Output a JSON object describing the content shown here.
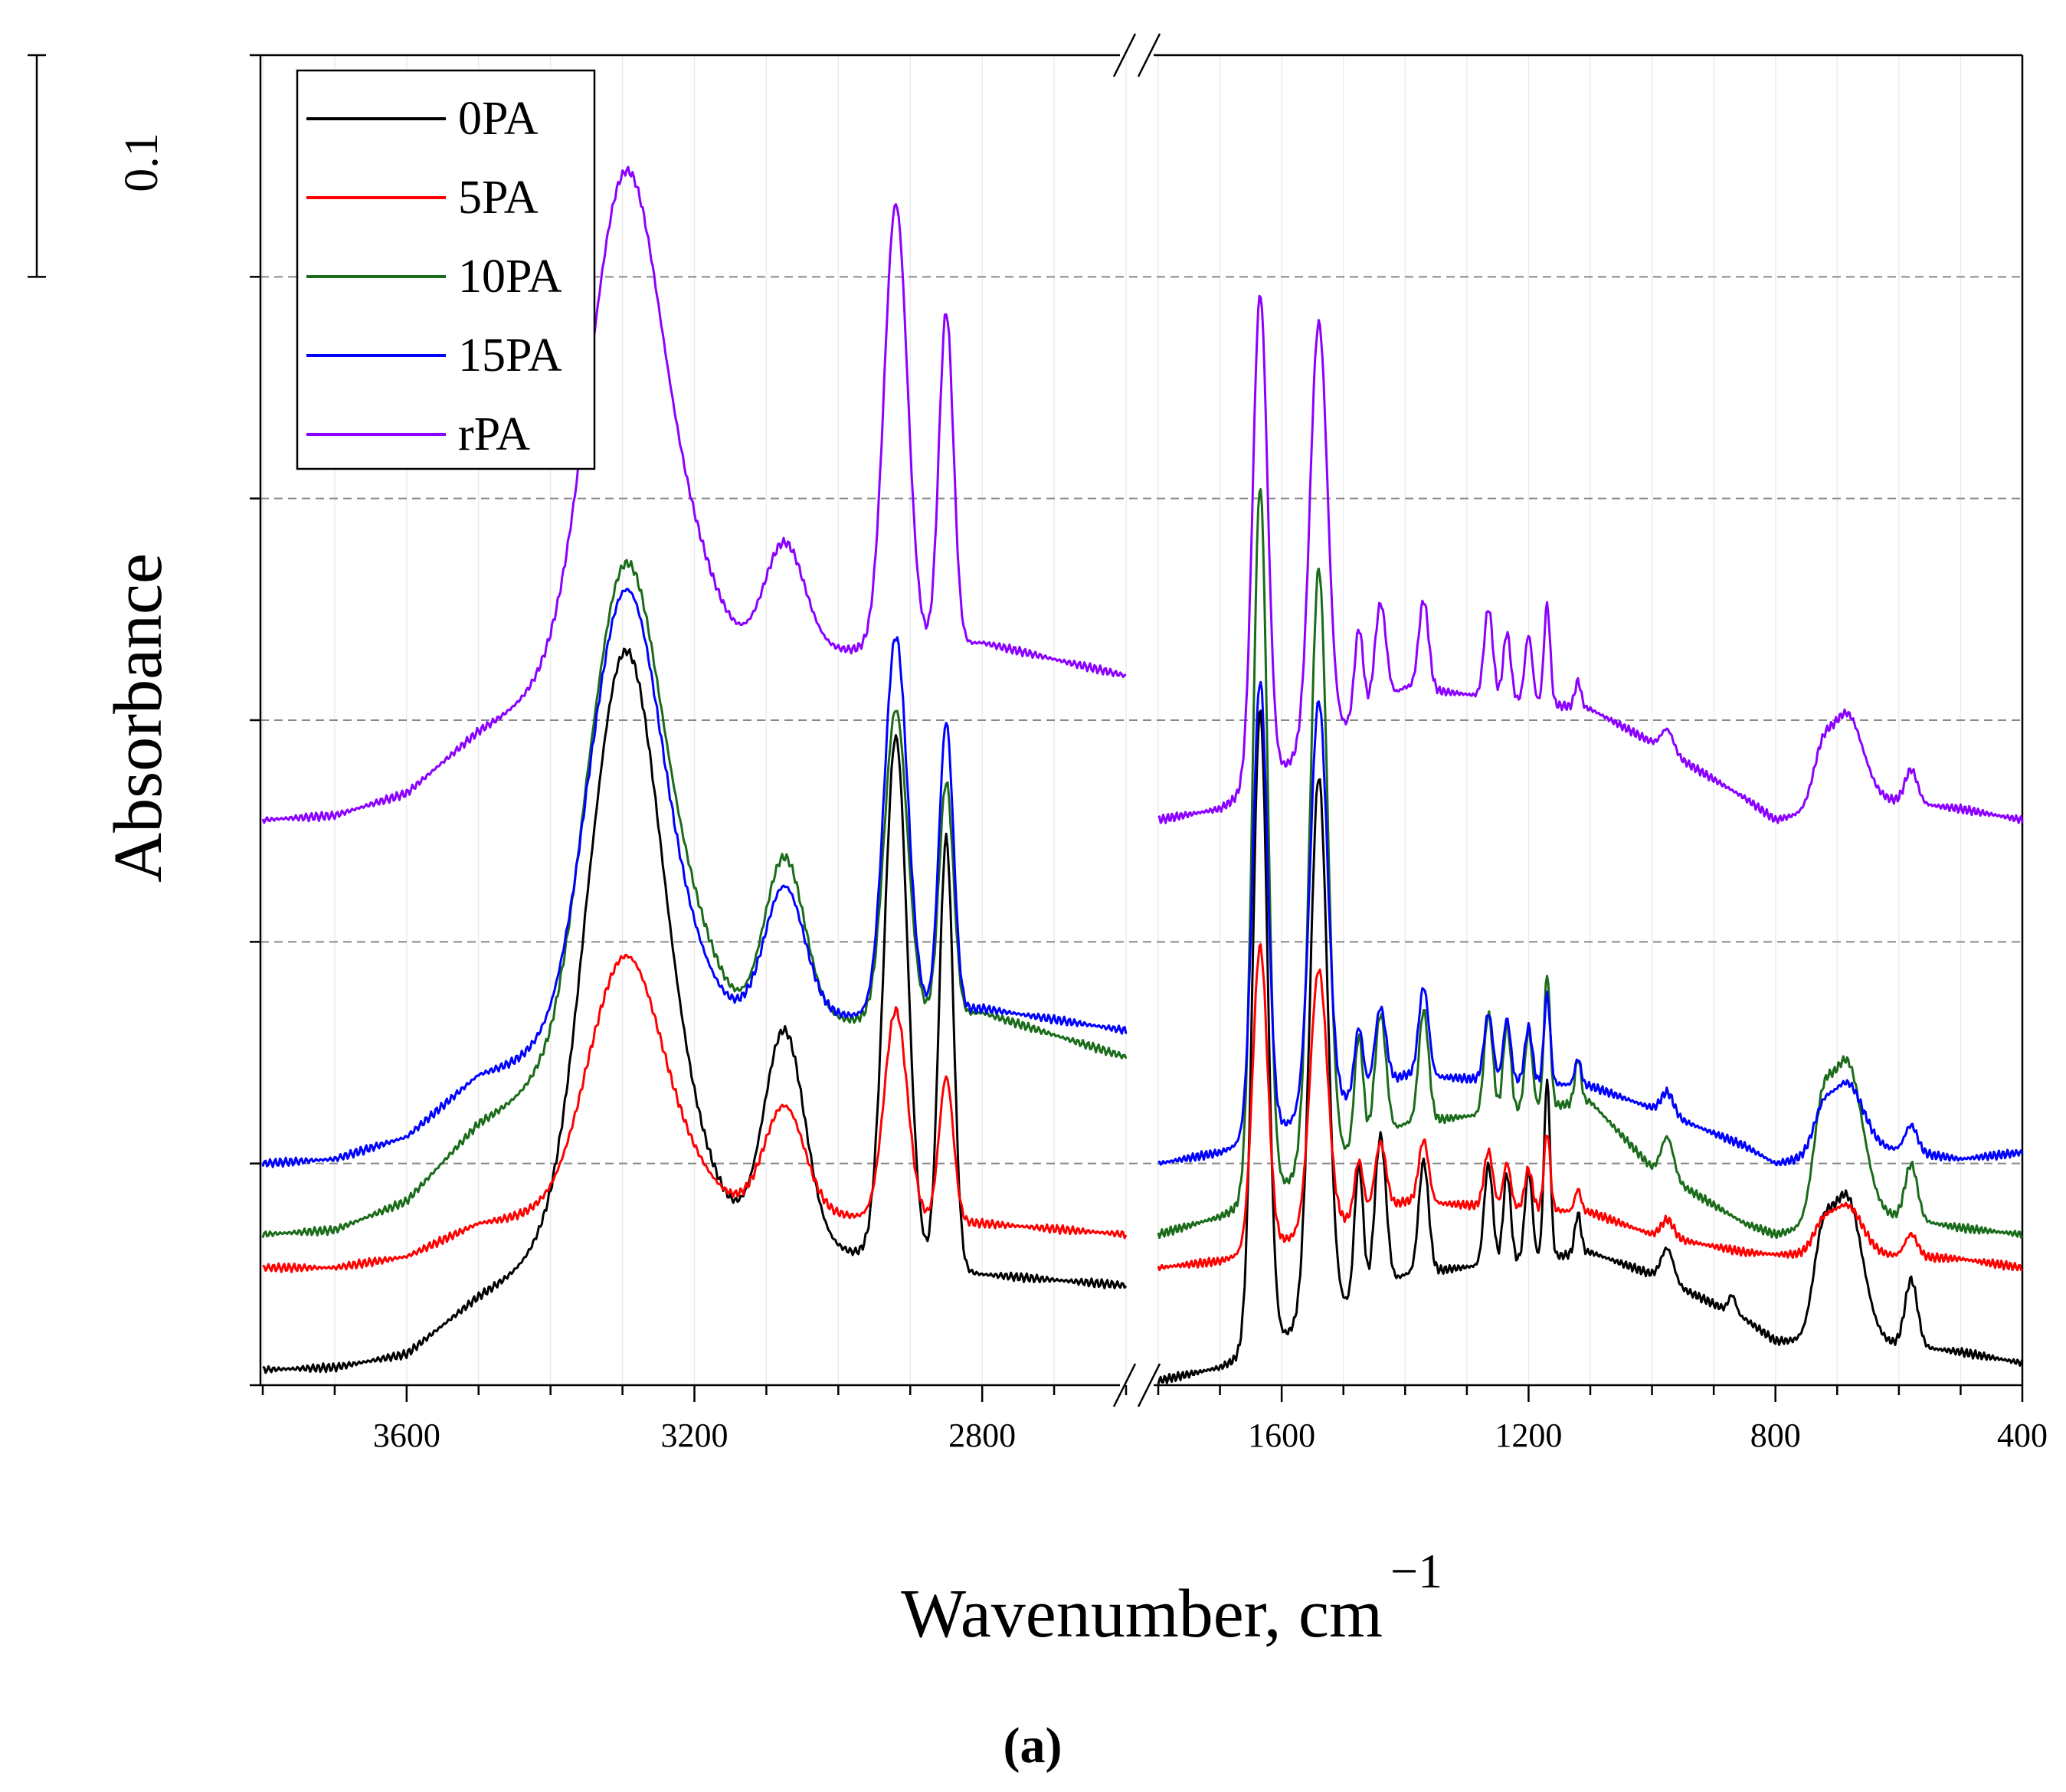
{
  "chart_data": {
    "type": "line",
    "title": "",
    "xlabel": "Wavenumber, cm",
    "xlabel_superscript": "−1",
    "ylabel": "Absorbance",
    "panel_label": "(a)",
    "scale_bar_label": "0.1",
    "scale_bar_value": 0.1,
    "x_axis_reversed": true,
    "x_break": true,
    "x_segments": [
      {
        "xlim": [
          3800,
          2600
        ],
        "ticks": [
          3600,
          3200,
          2800
        ],
        "tick_labels": [
          "3600",
          "3200",
          "2800"
        ]
      },
      {
        "xlim": [
          1800,
          400
        ],
        "ticks": [
          1600,
          1200,
          800,
          400
        ],
        "tick_labels": [
          "1600",
          "1200",
          "800",
          "400"
        ]
      }
    ],
    "ylim": [
      0,
      0.6
    ],
    "y_reference_lines": [
      0.1,
      0.2,
      0.3,
      0.4,
      0.5
    ],
    "y_ticks_labeled": false,
    "legend_position": "top-left",
    "series": [
      {
        "name": "0PA",
        "color": "#000000",
        "offset": 0.0,
        "baseline_high": [
          [
            3800,
            0.007
          ],
          [
            3700,
            0.008
          ],
          [
            3600,
            0.014
          ],
          [
            3500,
            0.04
          ],
          [
            3400,
            0.06
          ],
          [
            3350,
            0.08
          ],
          [
            2800,
            0.05
          ],
          [
            2600,
            0.045
          ]
        ],
        "baseline_low": [
          [
            1800,
            0.002
          ],
          [
            1700,
            0.008
          ],
          [
            1400,
            0.05
          ],
          [
            1100,
            0.06
          ],
          [
            1000,
            0.05
          ],
          [
            850,
            0.03
          ],
          [
            800,
            0.02
          ],
          [
            650,
            0.02
          ],
          [
            500,
            0.015
          ],
          [
            400,
            0.01
          ]
        ],
        "peaks_high": [
          [
            3295,
            0.253,
            50
          ],
          [
            3200,
            0.02,
            40
          ],
          [
            3075,
            0.095,
            28
          ],
          [
            2920,
            0.236,
            16
          ],
          [
            2850,
            0.194,
            10
          ]
        ],
        "peaks_low": [
          [
            1635,
            0.287,
            12
          ],
          [
            1540,
            0.244,
            14
          ],
          [
            1475,
            0.06,
            7
          ],
          [
            1440,
            0.068,
            9
          ],
          [
            1370,
            0.05,
            8
          ],
          [
            1265,
            0.045,
            7
          ],
          [
            1235,
            0.04,
            6
          ],
          [
            1200,
            0.04,
            6
          ],
          [
            1170,
            0.08,
            5
          ],
          [
            1120,
            0.018,
            5
          ],
          [
            975,
            0.015,
            10
          ],
          [
            870,
            0.008,
            6
          ],
          [
            725,
            0.035,
            15
          ],
          [
            685,
            0.065,
            25
          ],
          [
            580,
            0.03,
            10
          ]
        ]
      },
      {
        "name": "5PA",
        "color": "#ff0000",
        "offset": 0.053,
        "baseline_high": [
          [
            3800,
            0.0
          ],
          [
            3700,
            0.0
          ],
          [
            3600,
            0.005
          ],
          [
            3500,
            0.02
          ],
          [
            3400,
            0.025
          ],
          [
            3350,
            0.03
          ],
          [
            2800,
            0.02
          ],
          [
            2600,
            0.015
          ]
        ],
        "baseline_low": [
          [
            1800,
            0.0
          ],
          [
            1700,
            0.003
          ],
          [
            1400,
            0.03
          ],
          [
            1100,
            0.025
          ],
          [
            1000,
            0.015
          ],
          [
            850,
            0.007
          ],
          [
            800,
            0.006
          ],
          [
            650,
            0.006
          ],
          [
            500,
            0.004
          ],
          [
            400,
            0.0
          ]
        ],
        "peaks_high": [
          [
            3295,
            0.111,
            50
          ],
          [
            3200,
            0.01,
            40
          ],
          [
            3075,
            0.048,
            28
          ],
          [
            2920,
            0.094,
            16
          ],
          [
            2850,
            0.065,
            10
          ]
        ],
        "peaks_low": [
          [
            1635,
            0.136,
            12
          ],
          [
            1540,
            0.117,
            14
          ],
          [
            1475,
            0.025,
            7
          ],
          [
            1440,
            0.03,
            9
          ],
          [
            1370,
            0.028,
            8
          ],
          [
            1265,
            0.025,
            7
          ],
          [
            1235,
            0.02,
            6
          ],
          [
            1200,
            0.018,
            6
          ],
          [
            1170,
            0.035,
            5
          ],
          [
            1120,
            0.01,
            5
          ],
          [
            975,
            0.008,
            10
          ],
          [
            725,
            0.01,
            15
          ],
          [
            685,
            0.022,
            25
          ],
          [
            580,
            0.01,
            10
          ]
        ]
      },
      {
        "name": "10PA",
        "color": "#1a6b1a",
        "offset": 0.068,
        "baseline_high": [
          [
            3800,
            0.0
          ],
          [
            3700,
            0.002
          ],
          [
            3600,
            0.015
          ],
          [
            3500,
            0.05
          ],
          [
            3400,
            0.07
          ],
          [
            3350,
            0.09
          ],
          [
            2800,
            0.1
          ],
          [
            2600,
            0.08
          ]
        ],
        "baseline_low": [
          [
            1800,
            0.0
          ],
          [
            1700,
            0.008
          ],
          [
            1400,
            0.05
          ],
          [
            1100,
            0.06
          ],
          [
            1000,
            0.03
          ],
          [
            850,
            0.005
          ],
          [
            800,
            0.0
          ],
          [
            650,
            0.01
          ],
          [
            500,
            0.003
          ],
          [
            400,
            0.0
          ]
        ],
        "peaks_high": [
          [
            3295,
            0.21,
            50
          ],
          [
            3200,
            0.03,
            40
          ],
          [
            3075,
            0.075,
            28
          ],
          [
            2920,
            0.139,
            16
          ],
          [
            2850,
            0.105,
            10
          ]
        ],
        "peaks_low": [
          [
            1635,
            0.32,
            12
          ],
          [
            1540,
            0.27,
            14
          ],
          [
            1475,
            0.05,
            7
          ],
          [
            1440,
            0.055,
            9
          ],
          [
            1370,
            0.05,
            8
          ],
          [
            1265,
            0.045,
            7
          ],
          [
            1235,
            0.04,
            6
          ],
          [
            1200,
            0.035,
            6
          ],
          [
            1170,
            0.06,
            5
          ],
          [
            1120,
            0.02,
            5
          ],
          [
            975,
            0.018,
            10
          ],
          [
            725,
            0.04,
            15
          ],
          [
            685,
            0.07,
            25
          ],
          [
            580,
            0.025,
            10
          ]
        ]
      },
      {
        "name": "15PA",
        "color": "#0000ff",
        "offset": 0.1,
        "baseline_high": [
          [
            3800,
            0.0
          ],
          [
            3700,
            0.002
          ],
          [
            3600,
            0.012
          ],
          [
            3500,
            0.04
          ],
          [
            3400,
            0.05
          ],
          [
            3350,
            0.06
          ],
          [
            2800,
            0.07
          ],
          [
            2600,
            0.06
          ]
        ],
        "baseline_low": [
          [
            1800,
            0.0
          ],
          [
            1700,
            0.005
          ],
          [
            1400,
            0.04
          ],
          [
            1100,
            0.035
          ],
          [
            1000,
            0.025
          ],
          [
            850,
            0.008
          ],
          [
            800,
            0.0
          ],
          [
            650,
            0.008
          ],
          [
            500,
            0.002
          ],
          [
            400,
            0.005
          ]
        ],
        "peaks_high": [
          [
            3295,
            0.197,
            50
          ],
          [
            3200,
            0.015,
            40
          ],
          [
            3075,
            0.06,
            28
          ],
          [
            2920,
            0.17,
            16
          ],
          [
            2850,
            0.13,
            10
          ]
        ],
        "peaks_low": [
          [
            1635,
            0.205,
            12
          ],
          [
            1540,
            0.185,
            14
          ],
          [
            1475,
            0.03,
            7
          ],
          [
            1440,
            0.035,
            9
          ],
          [
            1370,
            0.04,
            8
          ],
          [
            1265,
            0.03,
            7
          ],
          [
            1235,
            0.028,
            6
          ],
          [
            1200,
            0.025,
            6
          ],
          [
            1170,
            0.04,
            5
          ],
          [
            1120,
            0.012,
            5
          ],
          [
            975,
            0.01,
            10
          ],
          [
            725,
            0.015,
            15
          ],
          [
            685,
            0.03,
            25
          ],
          [
            580,
            0.012,
            10
          ]
        ]
      },
      {
        "name": "rPA",
        "color": "#8b00ff",
        "offset": 0.255,
        "baseline_high": [
          [
            3800,
            0.0
          ],
          [
            3700,
            0.002
          ],
          [
            3600,
            0.012
          ],
          [
            3500,
            0.04
          ],
          [
            3400,
            0.06
          ],
          [
            3350,
            0.07
          ],
          [
            2800,
            0.08
          ],
          [
            2600,
            0.065
          ]
        ],
        "baseline_low": [
          [
            1800,
            0.0
          ],
          [
            1700,
            0.005
          ],
          [
            1400,
            0.06
          ],
          [
            1100,
            0.05
          ],
          [
            1000,
            0.035
          ],
          [
            850,
            0.01
          ],
          [
            800,
            0.0
          ],
          [
            650,
            0.01
          ],
          [
            500,
            0.005
          ],
          [
            400,
            0.0
          ]
        ],
        "peaks_high": [
          [
            3295,
            0.22,
            50
          ],
          [
            3200,
            0.03,
            40
          ],
          [
            3075,
            0.05,
            28
          ],
          [
            2920,
            0.2,
            16
          ],
          [
            2850,
            0.15,
            10
          ]
        ],
        "peaks_low": [
          [
            1635,
            0.22,
            12
          ],
          [
            1540,
            0.19,
            14
          ],
          [
            1475,
            0.04,
            7
          ],
          [
            1440,
            0.045,
            9
          ],
          [
            1370,
            0.04,
            8
          ],
          [
            1265,
            0.04,
            7
          ],
          [
            1235,
            0.03,
            6
          ],
          [
            1200,
            0.03,
            6
          ],
          [
            1170,
            0.045,
            5
          ],
          [
            1120,
            0.012,
            5
          ],
          [
            975,
            0.01,
            10
          ],
          [
            725,
            0.02,
            15
          ],
          [
            685,
            0.04,
            25
          ],
          [
            580,
            0.015,
            10
          ]
        ]
      }
    ]
  }
}
